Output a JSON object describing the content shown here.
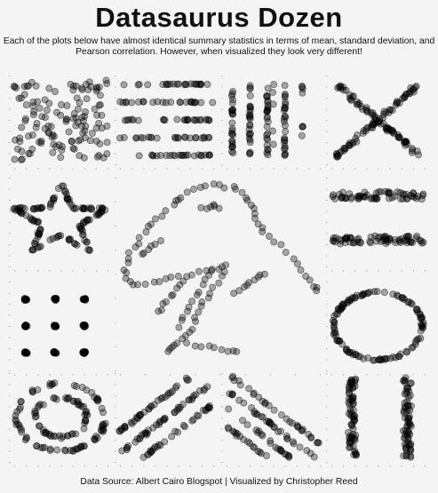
{
  "title": "Datasaurus Dozen",
  "subtitle": "Each of the plots below have almost identical summary statistics in terms of mean, standard deviation, and Pearson correlation. However, when visualized they look very different!",
  "source": "Data Source: Albert Cairo Blogspot | Visualized by Christopher Reed",
  "chart_data": [
    {
      "type": "scatter",
      "dataset": "away",
      "shape": "scattered blob filling the panel",
      "xlim": [
        15,
        95
      ],
      "ylim": [
        0,
        100
      ]
    },
    {
      "type": "scatter",
      "dataset": "h_lines",
      "shape": "five horizontal rows of points",
      "xlim": [
        15,
        95
      ],
      "ylim": [
        0,
        100
      ]
    },
    {
      "type": "scatter",
      "dataset": "v_lines",
      "shape": "six vertical columns of points",
      "xlim": [
        15,
        95
      ],
      "ylim": [
        0,
        100
      ]
    },
    {
      "type": "scatter",
      "dataset": "x_shape",
      "shape": "two crossing diagonal arms",
      "xlim": [
        15,
        95
      ],
      "ylim": [
        0,
        100
      ]
    },
    {
      "type": "scatter",
      "dataset": "star",
      "shape": "five-pointed star outline",
      "xlim": [
        15,
        95
      ],
      "ylim": [
        0,
        100
      ]
    },
    {
      "type": "scatter",
      "dataset": "dino",
      "shape": "dinosaur silhouette (large center panel)",
      "xlim": [
        15,
        95
      ],
      "ylim": [
        0,
        100
      ]
    },
    {
      "type": "scatter",
      "dataset": "high_lines",
      "shape": "two horizontal bands",
      "xlim": [
        15,
        95
      ],
      "ylim": [
        0,
        100
      ]
    },
    {
      "type": "scatter",
      "dataset": "dots",
      "shape": "3 x 3 grid of tight clusters",
      "xlim": [
        15,
        95
      ],
      "ylim": [
        0,
        100
      ]
    },
    {
      "type": "scatter",
      "dataset": "circle",
      "shape": "single ring",
      "xlim": [
        15,
        95
      ],
      "ylim": [
        0,
        100
      ]
    },
    {
      "type": "scatter",
      "dataset": "bullseye",
      "shape": "two concentric rings",
      "xlim": [
        15,
        95
      ],
      "ylim": [
        0,
        100
      ]
    },
    {
      "type": "scatter",
      "dataset": "slant_up",
      "shape": "parallel upward diagonal stripes",
      "xlim": [
        15,
        95
      ],
      "ylim": [
        0,
        100
      ]
    },
    {
      "type": "scatter",
      "dataset": "slant_down",
      "shape": "parallel downward diagonal stripes",
      "xlim": [
        15,
        95
      ],
      "ylim": [
        0,
        100
      ]
    },
    {
      "type": "scatter",
      "dataset": "wide_lines",
      "shape": "two wide vertical bands",
      "xlim": [
        15,
        95
      ],
      "ylim": [
        0,
        100
      ]
    }
  ],
  "colors": {
    "background": "#f4f4f4",
    "points": "#000000",
    "ticks": "#aaaaaa"
  }
}
